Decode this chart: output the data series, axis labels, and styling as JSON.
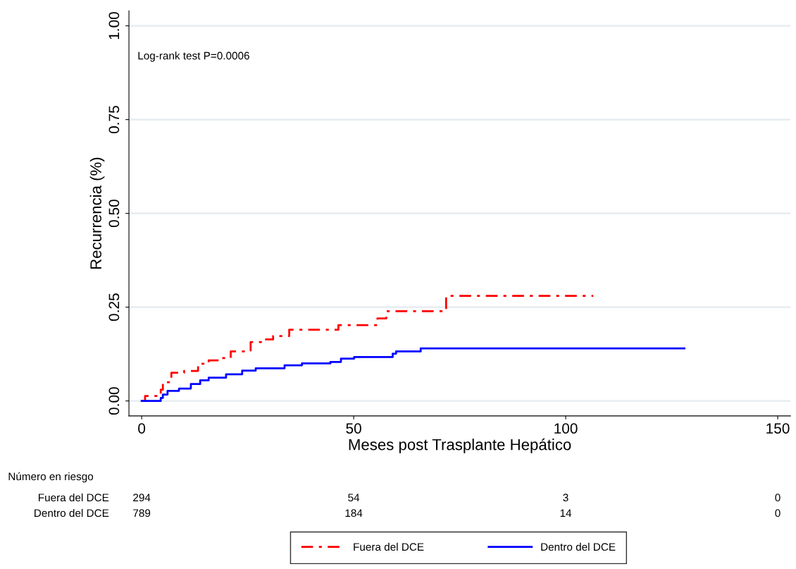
{
  "chart_data": {
    "type": "step",
    "xlabel": "Meses post Trasplante Hepático",
    "ylabel": "Recurrencia (%)",
    "xlim": [
      -3,
      153
    ],
    "xticks": [
      0,
      50,
      100,
      150
    ],
    "ylim": [
      -0.04,
      1.04
    ],
    "yticks": [
      {
        "value": 0,
        "label": "0.00"
      },
      {
        "value": 0.25,
        "label": "0.25"
      },
      {
        "value": 0.5,
        "label": "0.50"
      },
      {
        "value": 0.75,
        "label": "0.75"
      },
      {
        "value": 1,
        "label": "1.00"
      }
    ],
    "grid": "y",
    "legend": "bottom",
    "series": [
      {
        "name": "Fuera del DCE",
        "color": "#ff0000",
        "line_style": "dashed",
        "x": [
          0,
          0.8,
          4.5,
          5,
          7,
          10,
          13.3,
          15.8,
          18.8,
          21,
          25.7,
          28.7,
          31,
          34.8,
          46.4,
          55.6,
          57.7,
          71.8,
          106.5
        ],
        "values": [
          0,
          0.013,
          0.03,
          0.05,
          0.075,
          0.08,
          0.099,
          0.108,
          0.114,
          0.132,
          0.157,
          0.164,
          0.173,
          0.19,
          0.202,
          0.22,
          0.239,
          0.28,
          0.28
        ]
      },
      {
        "name": "Dentro del DCE",
        "color": "#0000ff",
        "line_style": "solid",
        "x": [
          0,
          4.5,
          5,
          6.1,
          8.8,
          11.6,
          13.8,
          15.8,
          19.9,
          23.7,
          26.9,
          33.7,
          37.8,
          44.5,
          47,
          50.1,
          59.2,
          60,
          65.8,
          128
        ],
        "values": [
          0,
          0.008,
          0.017,
          0.027,
          0.033,
          0.045,
          0.055,
          0.062,
          0.071,
          0.081,
          0.087,
          0.095,
          0.1,
          0.104,
          0.113,
          0.117,
          0.126,
          0.132,
          0.14,
          0.14
        ]
      }
    ],
    "annotations": [
      "Log-rank test P=0.0006",
      "Número en riesgo",
      "Fuera del DCE",
      "294",
      "54",
      "3",
      "0",
      "Dentro del DCE",
      "789",
      "184",
      "14",
      "0"
    ]
  }
}
